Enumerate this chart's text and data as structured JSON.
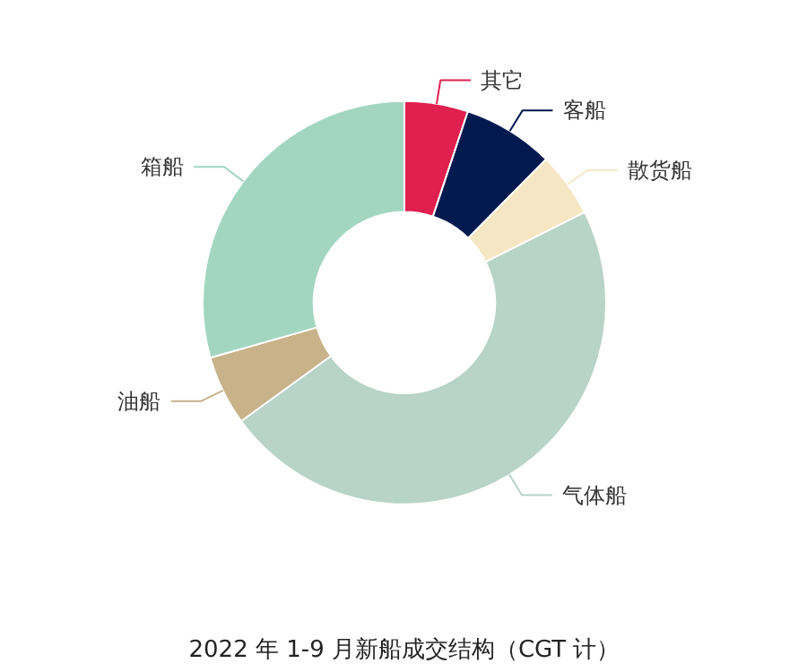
{
  "chart_data": {
    "type": "donut",
    "title": "2022 年 1-9 月新船成交结构（CGT 计）",
    "categories": [
      "其它",
      "客船",
      "散货船",
      "气体船",
      "油船",
      "箱船"
    ],
    "values": [
      5.1,
      7.3,
      5.2,
      47.4,
      5.6,
      29.4
    ],
    "colors": [
      "#e0204f",
      "#001a4f",
      "#f5e6c4",
      "#b8d3c8",
      "#c8b28a",
      "#a2d6c0"
    ]
  }
}
